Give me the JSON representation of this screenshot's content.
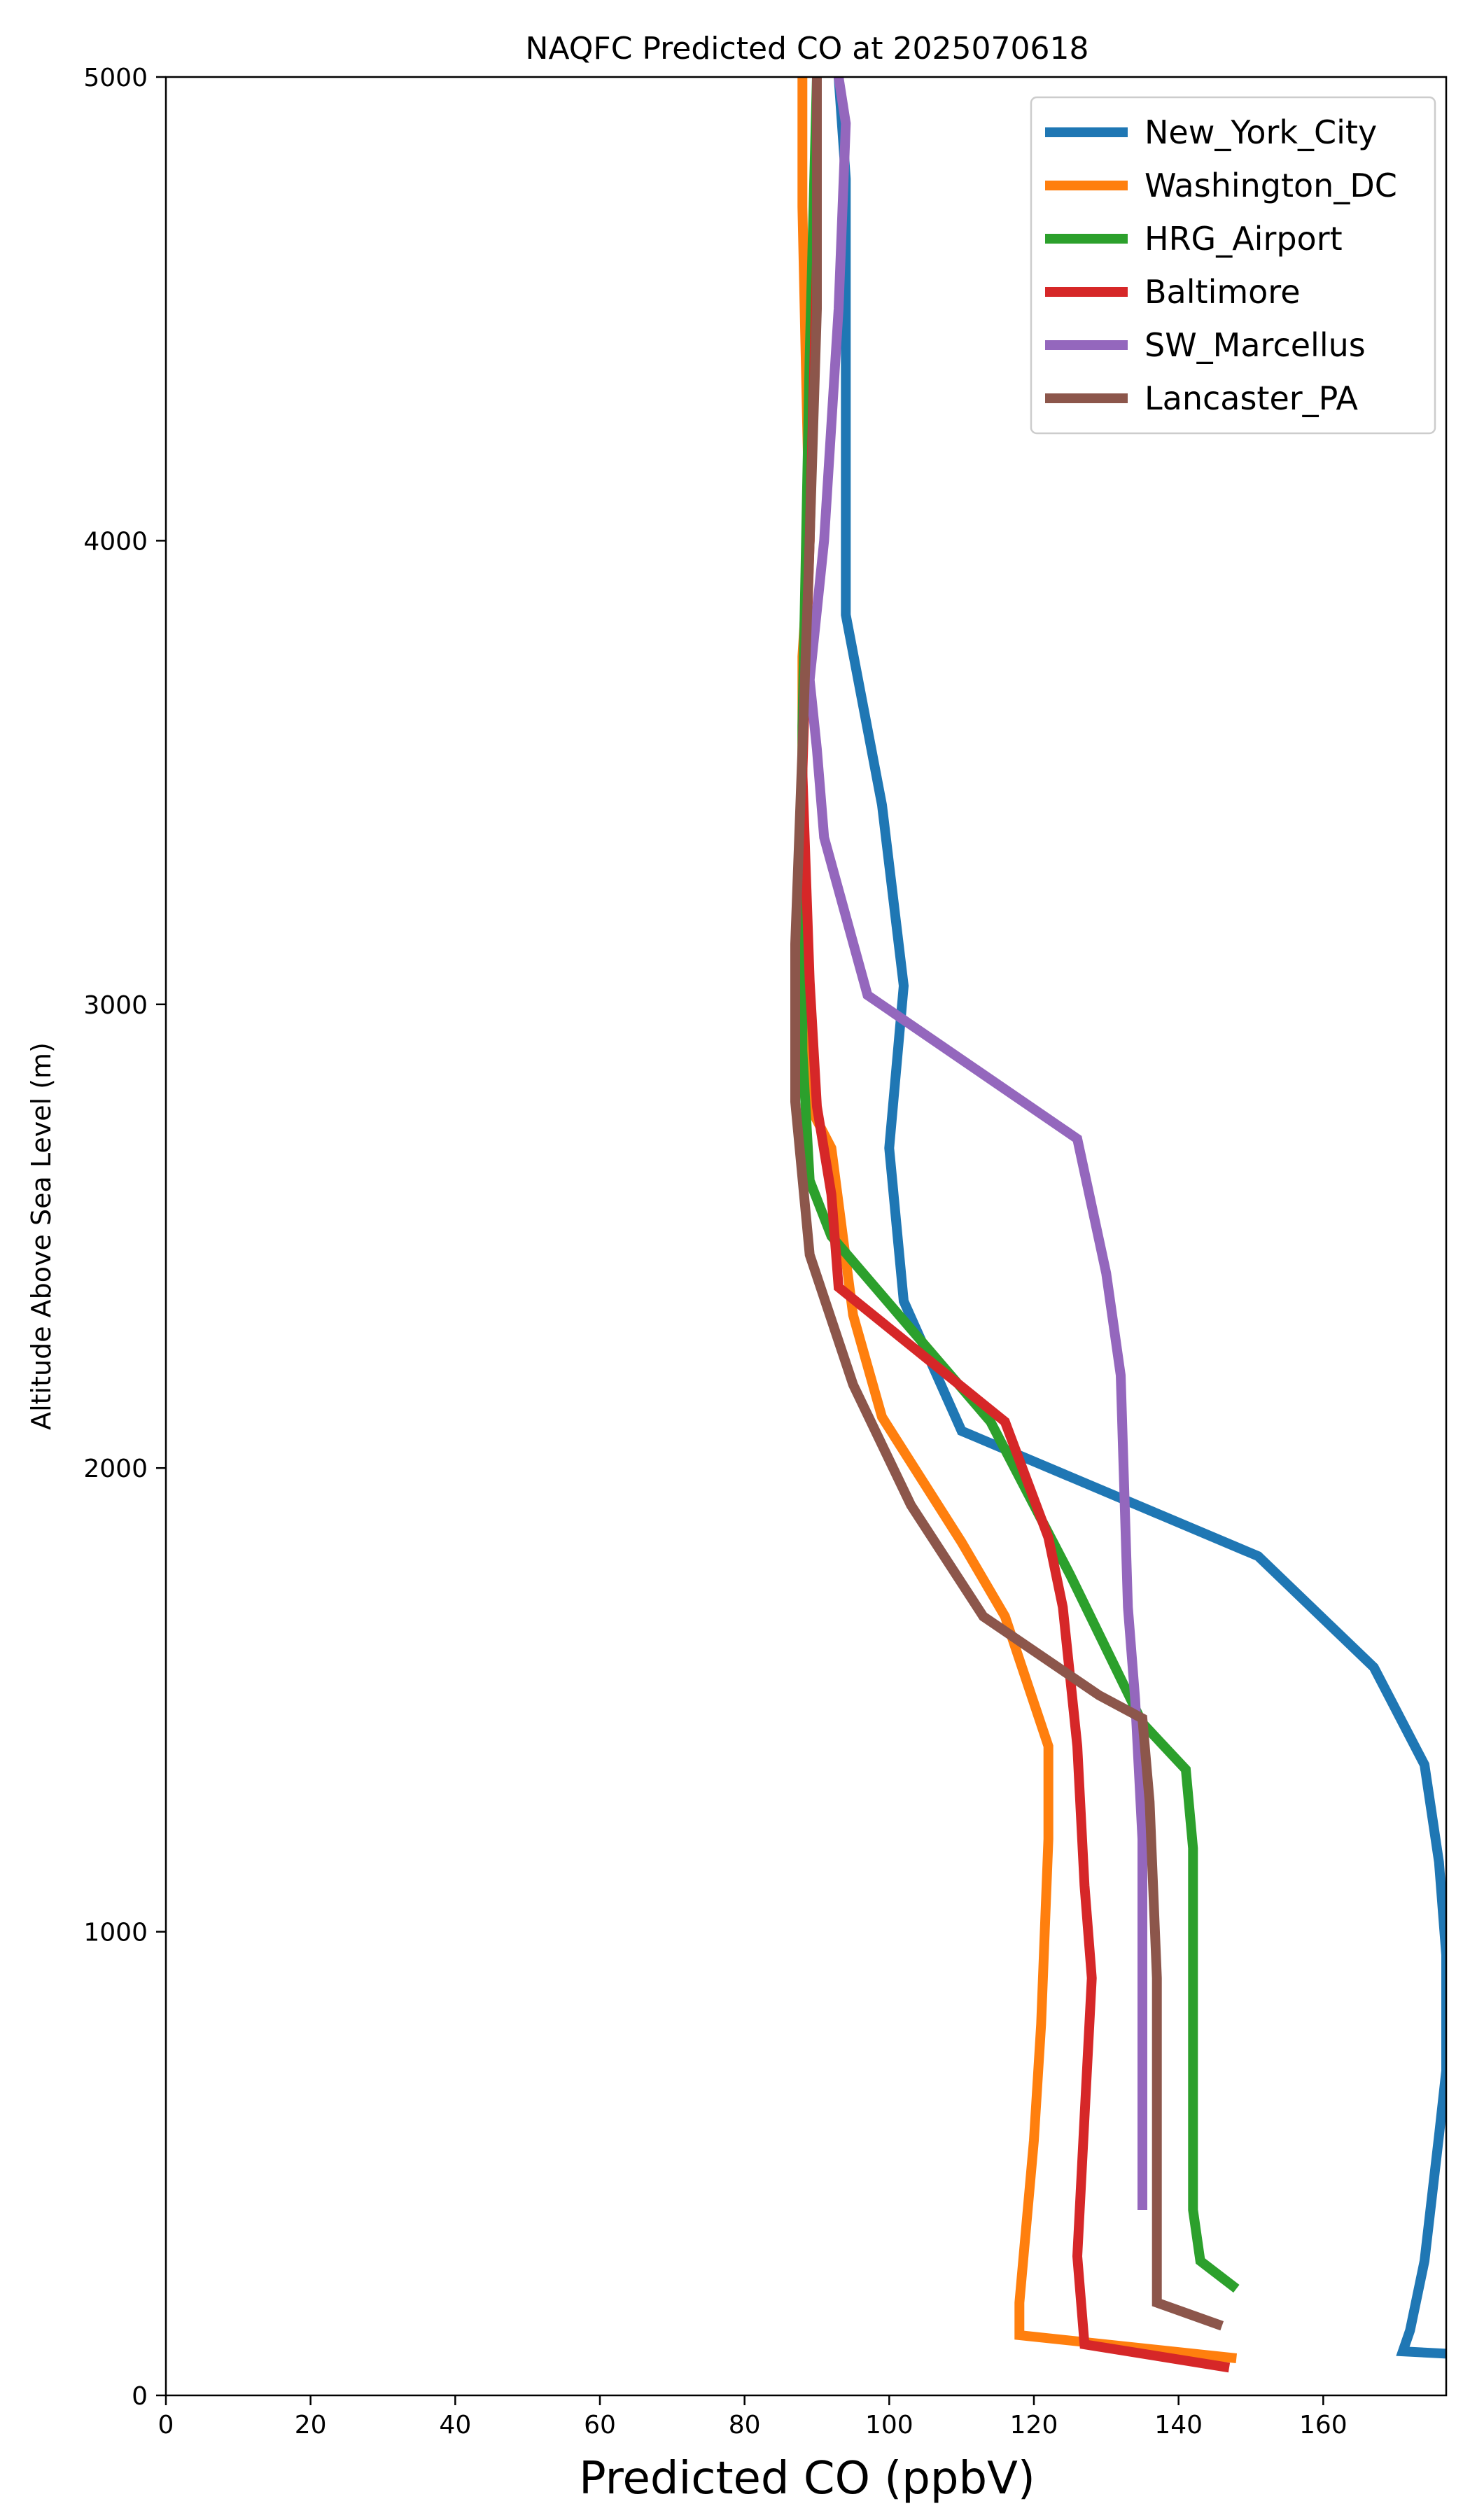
{
  "chart_data": {
    "type": "line",
    "title": "NAQFC Predicted CO at 2025070618",
    "xlabel": "Predicted CO (ppbV)",
    "ylabel": "Altitude Above Sea Level (m)",
    "xlim": [
      0,
      177
    ],
    "ylim": [
      0,
      5000
    ],
    "xticks": [
      "0",
      "20",
      "40",
      "60",
      "80",
      "100",
      "120",
      "140",
      "160"
    ],
    "yticks": [
      "0",
      "1000",
      "2000",
      "3000",
      "4000",
      "5000"
    ],
    "grid": false,
    "legend_position": "top-right",
    "series": [
      {
        "name": "New_York_City",
        "color": "#1f77b4",
        "points": [
          [
            177,
            90
          ],
          [
            171,
            95
          ],
          [
            172,
            140
          ],
          [
            174,
            290
          ],
          [
            176,
            560
          ],
          [
            177,
            700
          ],
          [
            177,
            950
          ],
          [
            176,
            1150
          ],
          [
            174,
            1360
          ],
          [
            167,
            1570
          ],
          [
            151,
            1810
          ],
          [
            110,
            2080
          ],
          [
            102,
            2360
          ],
          [
            100,
            2690
          ],
          [
            102,
            3040
          ],
          [
            99,
            3430
          ],
          [
            94,
            3840
          ],
          [
            94,
            4780
          ],
          [
            93,
            5000
          ]
        ]
      },
      {
        "name": "Washington_DC",
        "color": "#ff7f0e",
        "points": [
          [
            148,
            80
          ],
          [
            118,
            130
          ],
          [
            118,
            200
          ],
          [
            120,
            550
          ],
          [
            121,
            800
          ],
          [
            122,
            1200
          ],
          [
            122,
            1400
          ],
          [
            116,
            1680
          ],
          [
            110,
            1840
          ],
          [
            99,
            2110
          ],
          [
            95,
            2330
          ],
          [
            92,
            2690
          ],
          [
            89,
            2780
          ],
          [
            88,
            3200
          ],
          [
            88,
            3750
          ],
          [
            89,
            4000
          ],
          [
            88,
            4720
          ],
          [
            88,
            5000
          ]
        ]
      },
      {
        "name": "HRG_Airport",
        "color": "#2ca02c",
        "points": [
          [
            148,
            230
          ],
          [
            143,
            290
          ],
          [
            142,
            400
          ],
          [
            142,
            900
          ],
          [
            142,
            1180
          ],
          [
            141,
            1350
          ],
          [
            135,
            1450
          ],
          [
            125,
            1770
          ],
          [
            114,
            2100
          ],
          [
            92,
            2500
          ],
          [
            89,
            2620
          ],
          [
            88,
            2900
          ],
          [
            88,
            3600
          ],
          [
            89,
            4400
          ],
          [
            90,
            5000
          ]
        ]
      },
      {
        "name": "Baltimore",
        "color": "#d62728",
        "points": [
          [
            147,
            60
          ],
          [
            127,
            110
          ],
          [
            126,
            300
          ],
          [
            127,
            600
          ],
          [
            128,
            900
          ],
          [
            127,
            1100
          ],
          [
            126,
            1400
          ],
          [
            125,
            1550
          ],
          [
            124,
            1700
          ],
          [
            122,
            1850
          ],
          [
            116,
            2100
          ],
          [
            93,
            2390
          ],
          [
            92,
            2590
          ],
          [
            90,
            2780
          ],
          [
            89,
            3050
          ],
          [
            88,
            3500
          ],
          [
            89,
            4000
          ],
          [
            90,
            4600
          ],
          [
            90,
            5000
          ]
        ]
      },
      {
        "name": "SW_Marcellus",
        "color": "#9467bd",
        "points": [
          [
            135,
            400
          ],
          [
            135,
            800
          ],
          [
            135,
            1200
          ],
          [
            134,
            1500
          ],
          [
            133,
            1700
          ],
          [
            132,
            2200
          ],
          [
            130,
            2420
          ],
          [
            126,
            2710
          ],
          [
            97,
            3020
          ],
          [
            91,
            3360
          ],
          [
            90,
            3550
          ],
          [
            89,
            3700
          ],
          [
            91,
            4000
          ],
          [
            93,
            4500
          ],
          [
            94,
            4900
          ],
          [
            93,
            5000
          ]
        ]
      },
      {
        "name": "Lancaster_PA",
        "color": "#8c564b",
        "points": [
          [
            146,
            150
          ],
          [
            137,
            200
          ],
          [
            137,
            450
          ],
          [
            137,
            900
          ],
          [
            136,
            1280
          ],
          [
            135,
            1460
          ],
          [
            129,
            1510
          ],
          [
            113,
            1680
          ],
          [
            103,
            1920
          ],
          [
            95,
            2180
          ],
          [
            89,
            2460
          ],
          [
            87,
            2790
          ],
          [
            87,
            3130
          ],
          [
            88,
            3550
          ],
          [
            89,
            4000
          ],
          [
            90,
            4500
          ],
          [
            90,
            5000
          ]
        ]
      }
    ]
  }
}
